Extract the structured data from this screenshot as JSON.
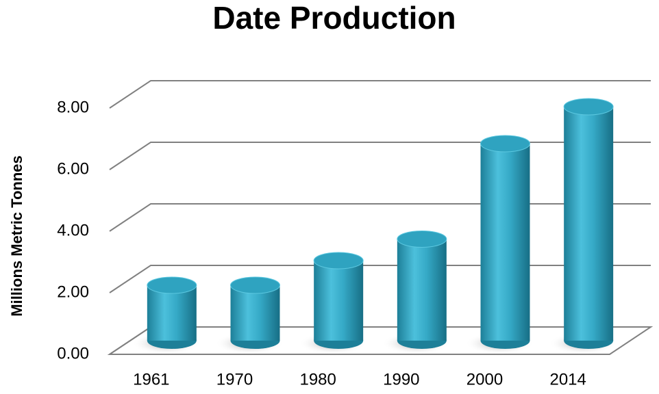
{
  "chart_data": {
    "type": "bar",
    "title": "Date Production",
    "y_label": "Millions Metric Tonnes",
    "categories": [
      "1961",
      "1970",
      "1980",
      "1990",
      "2000",
      "2014"
    ],
    "values": [
      1.8,
      1.8,
      2.6,
      3.3,
      6.4,
      7.6
    ],
    "color": "#2fa3c0",
    "ylim": [
      0,
      8
    ],
    "yticks": [
      {
        "value": 0,
        "label": "0.00"
      },
      {
        "value": 2,
        "label": "2.00"
      },
      {
        "value": 4,
        "label": "4.00"
      },
      {
        "value": 6,
        "label": "6.00"
      },
      {
        "value": 8,
        "label": "8.00"
      }
    ],
    "grid": true
  }
}
